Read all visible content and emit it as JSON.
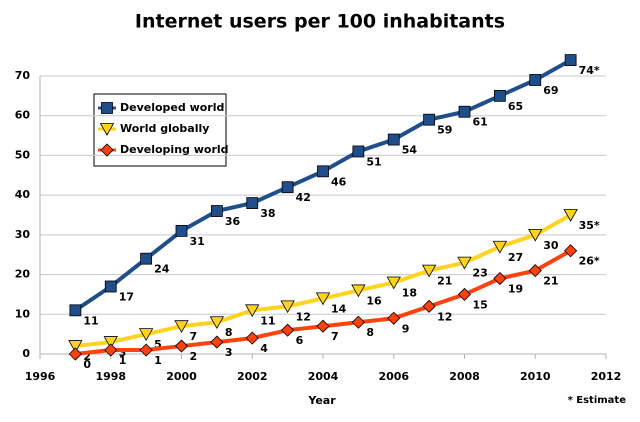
{
  "chart_data": {
    "type": "line",
    "title": "Internet users per 100 inhabitants",
    "x_label": "Year",
    "annotation": "* Estimate",
    "x": [
      1997,
      1998,
      1999,
      2000,
      2001,
      2002,
      2003,
      2004,
      2005,
      2006,
      2007,
      2008,
      2009,
      2010,
      2011
    ],
    "series": [
      {
        "name": "Developed world",
        "color": "#1f4e8c",
        "marker": "square",
        "values": [
          11,
          17,
          24,
          31,
          36,
          38,
          42,
          46,
          51,
          54,
          59,
          61,
          65,
          69,
          74
        ],
        "value_labels": [
          "11",
          "17",
          "24",
          "31",
          "36",
          "38",
          "42",
          "46",
          "51",
          "54",
          "59",
          "61",
          "65",
          "69",
          "74*"
        ]
      },
      {
        "name": "World globally",
        "color": "#ffd320",
        "marker": "triangle",
        "values": [
          2,
          3,
          5,
          7,
          8,
          11,
          12,
          14,
          16,
          18,
          21,
          23,
          27,
          30,
          35
        ],
        "value_labels": [
          "2",
          "3",
          "5",
          "7",
          "8",
          "11",
          "12",
          "14",
          "16",
          "18",
          "21",
          "23",
          "27",
          "30",
          "35*"
        ]
      },
      {
        "name": "Developing world",
        "color": "#ff420e",
        "marker": "diamond",
        "values": [
          0,
          1,
          1,
          2,
          3,
          4,
          6,
          7,
          8,
          9,
          12,
          15,
          19,
          21,
          26
        ],
        "value_labels": [
          "0",
          "1",
          "1",
          "2",
          "3",
          "4",
          "6",
          "7",
          "8",
          "9",
          "12",
          "15",
          "19",
          "21",
          "26*"
        ]
      }
    ],
    "xlim": [
      1996,
      2012
    ],
    "xticks": [
      1996,
      1998,
      2000,
      2002,
      2004,
      2006,
      2008,
      2010,
      2012
    ],
    "ylim": [
      0,
      70
    ],
    "yticks": [
      0,
      10,
      20,
      30,
      40,
      50,
      60,
      70
    ],
    "grid": true,
    "legend": "upper left"
  }
}
